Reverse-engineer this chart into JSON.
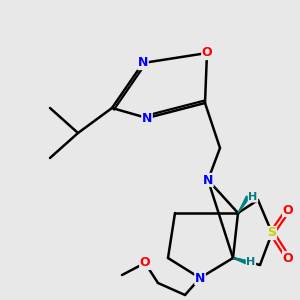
{
  "background_color": "#e8e8e8",
  "bond_color": "#000000",
  "atom_colors": {
    "N": "#0000ff",
    "O": "#ff0000",
    "S": "#cccc00",
    "H_stereo": "#008080",
    "C": "#000000"
  },
  "figsize": [
    3.0,
    3.0
  ],
  "dpi": 100
}
